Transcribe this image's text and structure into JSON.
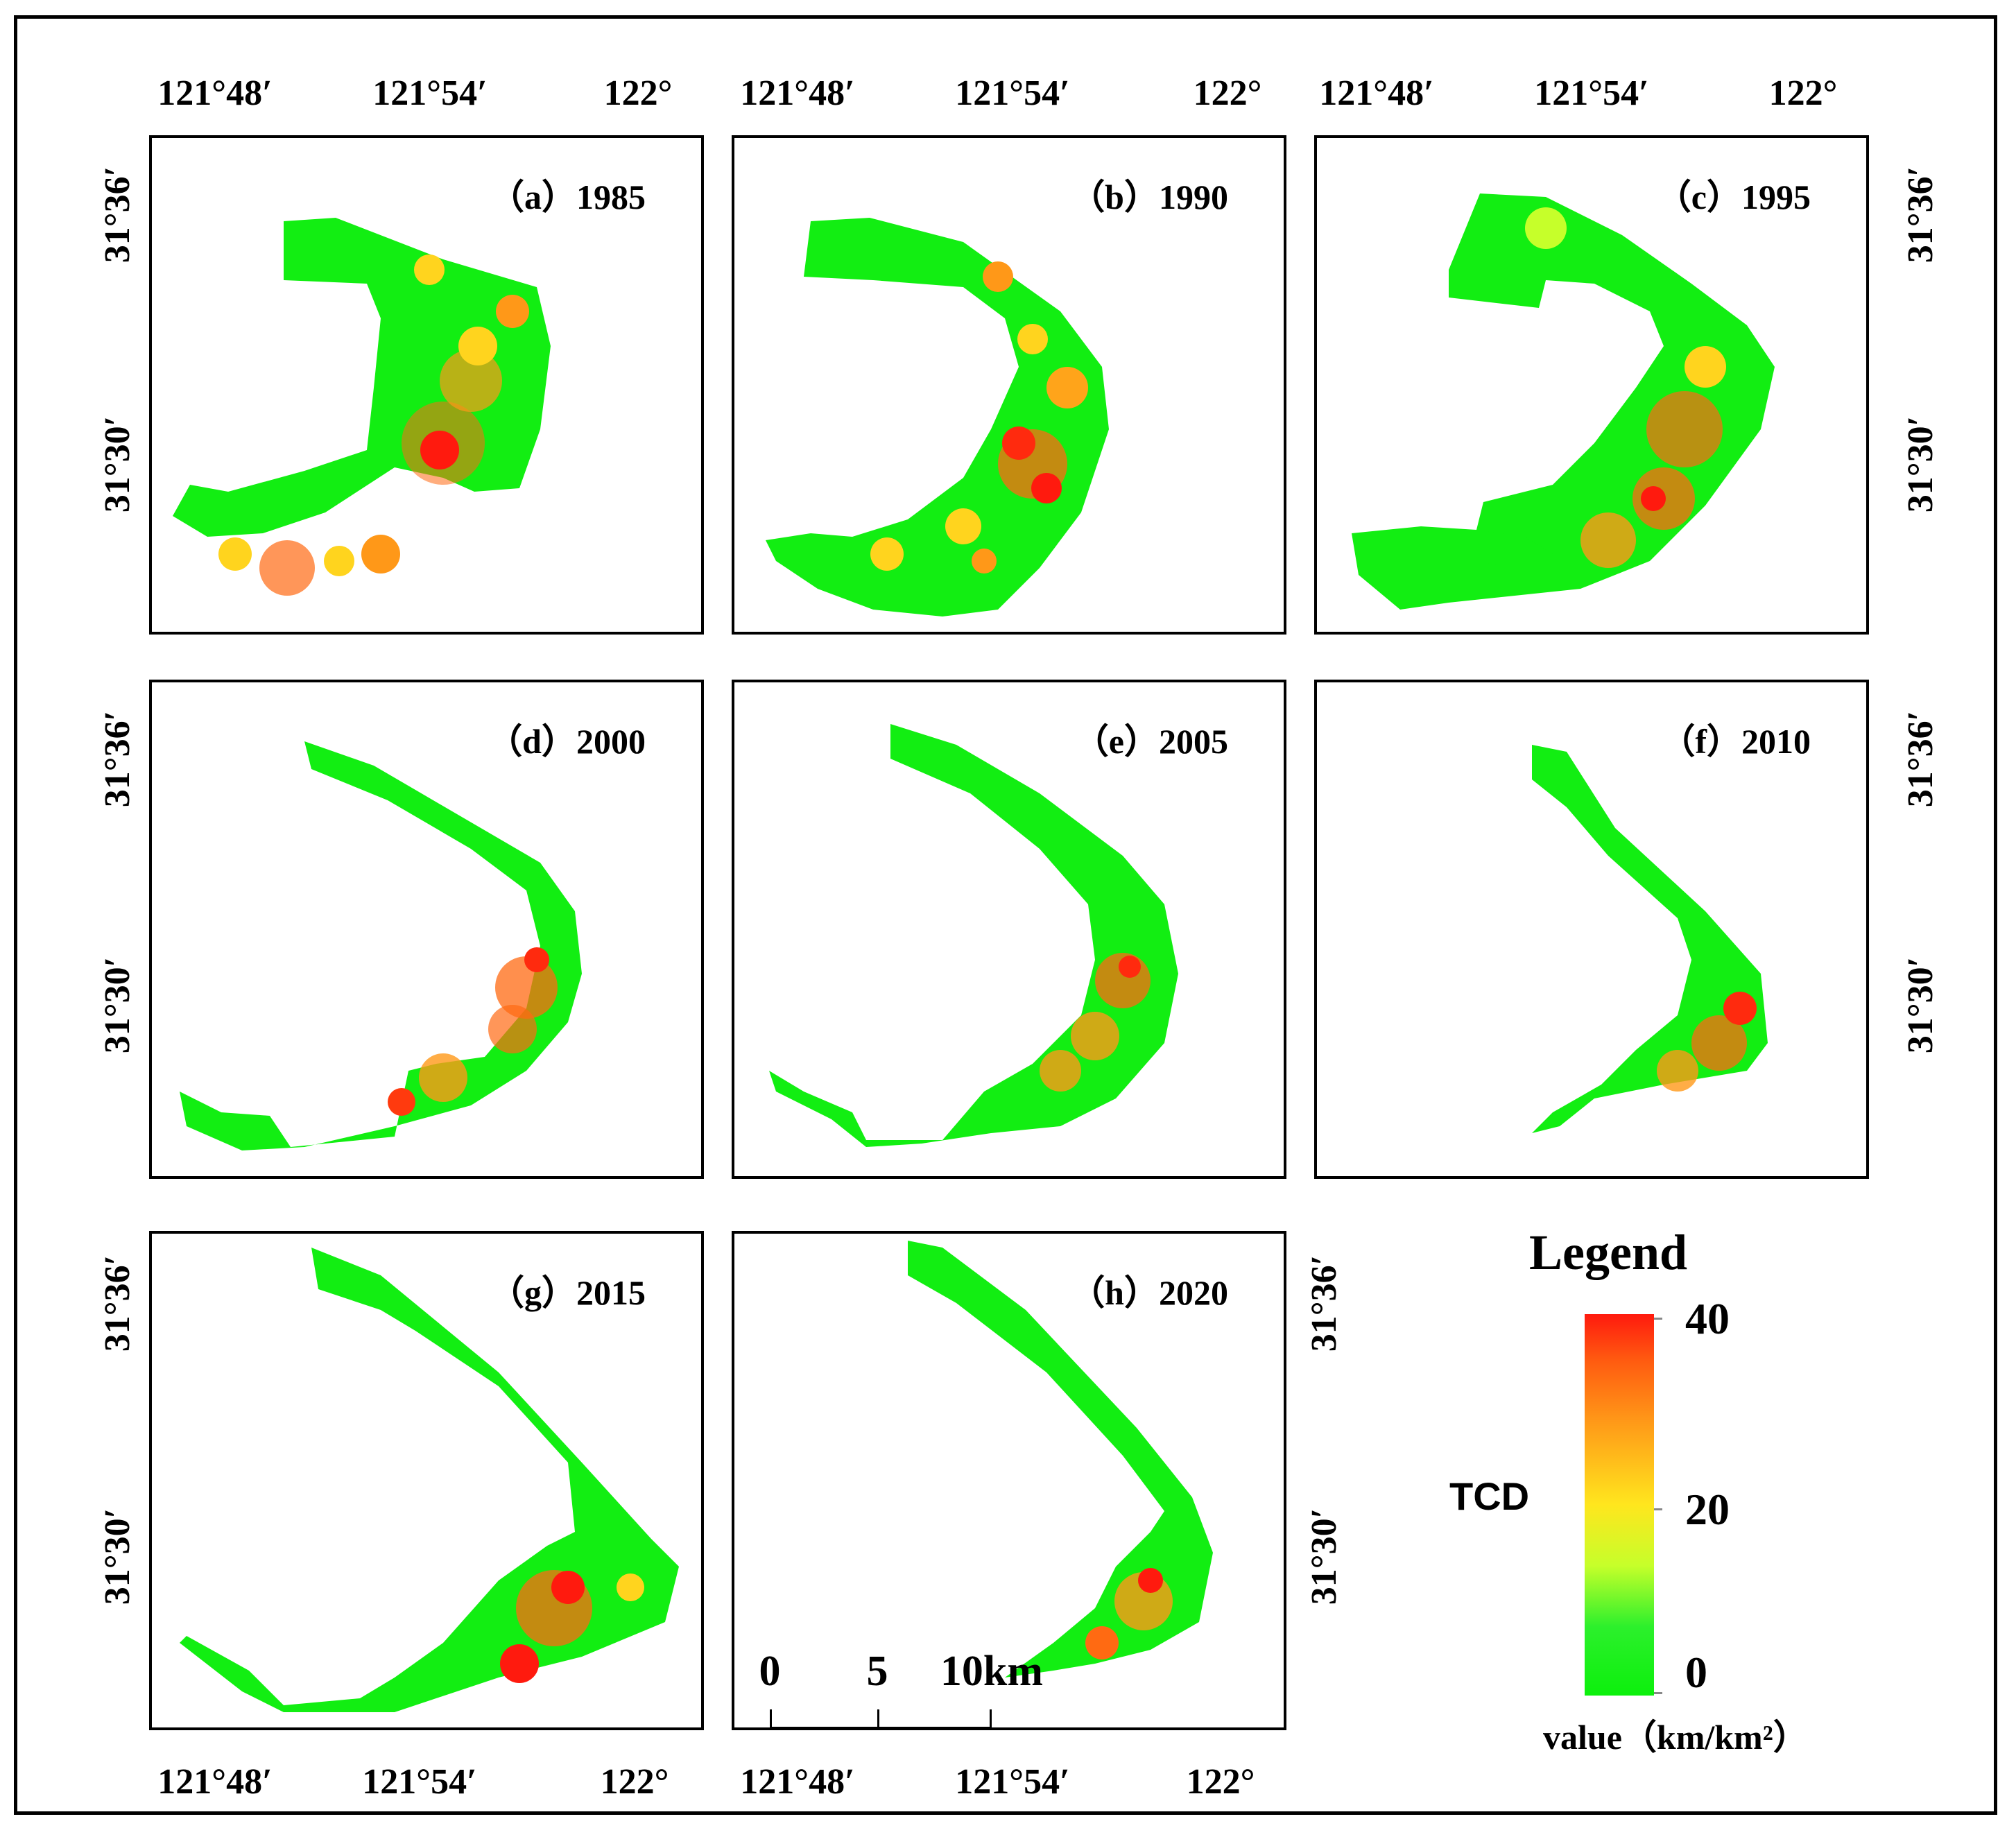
{
  "figure": {
    "panels": [
      {
        "id": "a",
        "label": "（a）1985"
      },
      {
        "id": "b",
        "label": "（b）1990"
      },
      {
        "id": "c",
        "label": "（c）1995"
      },
      {
        "id": "d",
        "label": "（d）2000"
      },
      {
        "id": "e",
        "label": "（e）2005"
      },
      {
        "id": "f",
        "label": "（f）2010"
      },
      {
        "id": "g",
        "label": "（g）2015"
      },
      {
        "id": "h",
        "label": "（h）2020"
      }
    ],
    "lon_ticks": [
      "121°48′",
      "121°54′",
      "122°"
    ],
    "lat_ticks": [
      "31°36′",
      "31°30′"
    ]
  },
  "legend": {
    "title": "Legend",
    "variable": "TCD",
    "max_label": "40",
    "mid_label": "20",
    "min_label": "0",
    "unit": "value（km/km²）",
    "colors": {
      "high": "#ff1a0e",
      "mid_high": "#ff9818",
      "mid": "#ffe61e",
      "low": "#0cf00c"
    }
  },
  "scalebar": {
    "labels": [
      "0",
      "5",
      "10km"
    ]
  }
}
